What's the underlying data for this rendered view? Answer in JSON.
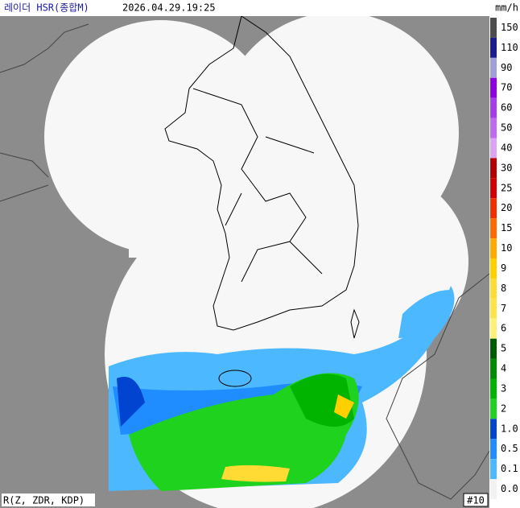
{
  "header": {
    "title": "레이더 HSR(종합M)",
    "timestamp": "2026.04.29.19:25",
    "unit": "mm/h"
  },
  "legend": [
    {
      "label": "150",
      "color": "#4d4d4d"
    },
    {
      "label": "110",
      "color": "#1c1c8f"
    },
    {
      "label": "90",
      "color": "#9fa0d8"
    },
    {
      "label": "70",
      "color": "#8e00e0"
    },
    {
      "label": "60",
      "color": "#a53ee8"
    },
    {
      "label": "50",
      "color": "#c169f0"
    },
    {
      "label": "40",
      "color": "#dba3f5"
    },
    {
      "label": "30",
      "color": "#b40000"
    },
    {
      "label": "25",
      "color": "#d20000"
    },
    {
      "label": "20",
      "color": "#f03000"
    },
    {
      "label": "15",
      "color": "#ff6a00"
    },
    {
      "label": "10",
      "color": "#ffaa00"
    },
    {
      "label": "9",
      "color": "#ffcf00"
    },
    {
      "label": "8",
      "color": "#ffdb33"
    },
    {
      "label": "7",
      "color": "#ffe34d"
    },
    {
      "label": "6",
      "color": "#fff07a"
    },
    {
      "label": "5",
      "color": "#005a00"
    },
    {
      "label": "4",
      "color": "#008c00"
    },
    {
      "label": "3",
      "color": "#00b400"
    },
    {
      "label": "2",
      "color": "#1ed21e"
    },
    {
      "label": "1.0",
      "color": "#0044d0"
    },
    {
      "label": "0.5",
      "color": "#1f8cff"
    },
    {
      "label": "0.1",
      "color": "#4cb8ff"
    },
    {
      "label": "0.0",
      "color": "#f2f2f2"
    }
  ],
  "footer": {
    "method": "R(Z, ZDR, KDP)",
    "frame": "#10"
  }
}
